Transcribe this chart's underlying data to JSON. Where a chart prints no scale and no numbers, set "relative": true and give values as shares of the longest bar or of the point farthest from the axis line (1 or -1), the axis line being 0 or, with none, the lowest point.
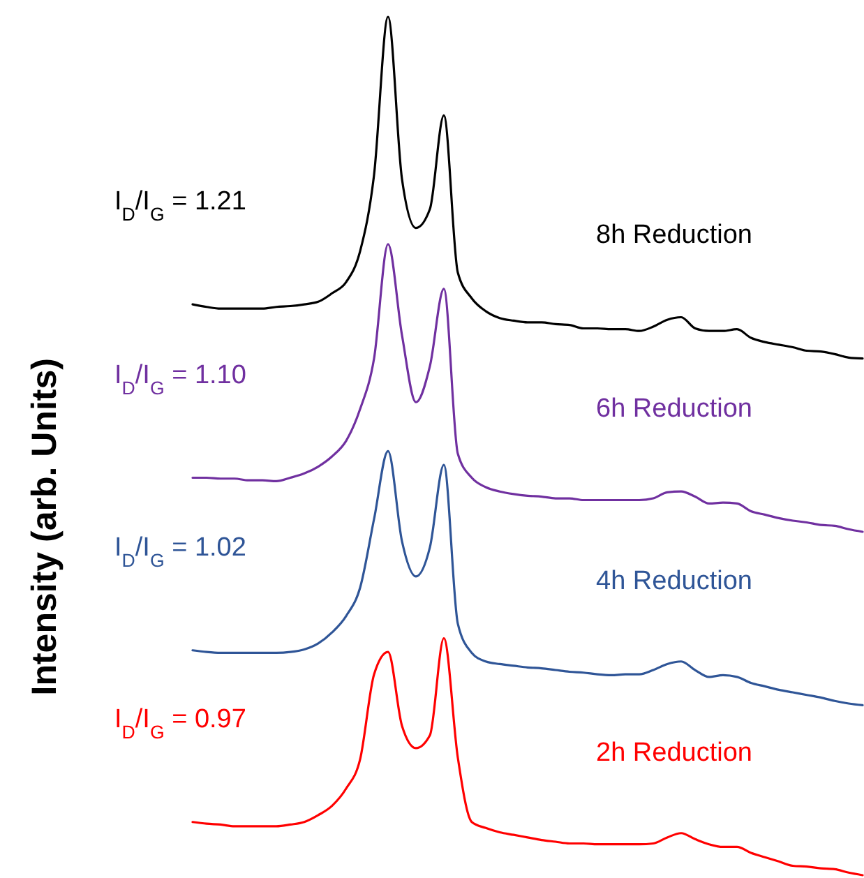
{
  "chart_data": {
    "type": "line",
    "relative": true,
    "ylabel": "Intensity (arb. Units)",
    "categories": [
      null,
      null,
      null,
      null,
      null,
      null,
      null,
      null,
      null,
      null,
      null,
      null,
      null,
      null,
      null,
      null,
      null,
      null,
      null,
      null,
      null,
      null,
      null,
      null,
      null,
      null,
      null,
      null,
      null,
      null,
      null,
      null,
      null,
      null,
      null,
      null,
      null,
      null,
      null,
      null,
      null,
      null,
      null,
      null,
      null,
      null,
      null,
      null,
      null
    ],
    "series": [
      {
        "name": "8h Reduction",
        "color": "#000000",
        "values": [
          0.665,
          0.662,
          0.66,
          0.66,
          0.66,
          0.66,
          0.662,
          0.663,
          0.665,
          0.668,
          0.678,
          0.691,
          0.727,
          0.816,
          1,
          0.811,
          0.754,
          0.776,
          0.885,
          0.702,
          0.672,
          0.657,
          0.649,
          0.646,
          0.644,
          0.644,
          0.642,
          0.641,
          0.637,
          0.637,
          0.636,
          0.636,
          0.634,
          0.639,
          0.647,
          0.65,
          0.637,
          0.634,
          0.634,
          0.636,
          0.626,
          0.621,
          0.618,
          0.615,
          0.611,
          0.61,
          0.607,
          0.603,
          0.602
        ]
      },
      {
        "name": "6h Reduction",
        "color": "#7030a0",
        "values": [
          0.463,
          0.463,
          0.462,
          0.462,
          0.46,
          0.46,
          0.459,
          0.463,
          0.468,
          0.476,
          0.488,
          0.506,
          0.543,
          0.602,
          0.735,
          0.629,
          0.551,
          0.593,
          0.683,
          0.491,
          0.463,
          0.452,
          0.447,
          0.444,
          0.442,
          0.441,
          0.439,
          0.439,
          0.437,
          0.437,
          0.437,
          0.437,
          0.437,
          0.439,
          0.446,
          0.447,
          0.441,
          0.433,
          0.434,
          0.433,
          0.424,
          0.42,
          0.416,
          0.413,
          0.411,
          0.408,
          0.407,
          0.403,
          0.4
        ]
      },
      {
        "name": "4h Reduction",
        "color": "#2f5597",
        "values": [
          0.262,
          0.26,
          0.259,
          0.259,
          0.259,
          0.259,
          0.259,
          0.26,
          0.263,
          0.27,
          0.283,
          0.302,
          0.335,
          0.415,
          0.494,
          0.389,
          0.348,
          0.382,
          0.478,
          0.293,
          0.259,
          0.249,
          0.246,
          0.244,
          0.242,
          0.241,
          0.239,
          0.237,
          0.236,
          0.234,
          0.233,
          0.234,
          0.234,
          0.239,
          0.246,
          0.249,
          0.239,
          0.231,
          0.233,
          0.231,
          0.224,
          0.22,
          0.216,
          0.213,
          0.21,
          0.207,
          0.203,
          0.2,
          0.198
        ]
      },
      {
        "name": "2h Reduction",
        "color": "#ff0000",
        "values": [
          0.062,
          0.06,
          0.059,
          0.057,
          0.057,
          0.057,
          0.057,
          0.059,
          0.062,
          0.07,
          0.081,
          0.101,
          0.135,
          0.234,
          0.26,
          0.174,
          0.148,
          0.163,
          0.276,
          0.137,
          0.062,
          0.055,
          0.05,
          0.047,
          0.044,
          0.041,
          0.039,
          0.037,
          0.037,
          0.036,
          0.036,
          0.036,
          0.036,
          0.037,
          0.044,
          0.049,
          0.042,
          0.036,
          0.033,
          0.033,
          0.026,
          0.021,
          0.016,
          0.011,
          0.01,
          0.008,
          0.007,
          0.003,
          0
        ]
      }
    ],
    "annotations": [
      "I$_{D}$/I$_{G}$ = 1.21",
      "I$_{D}$/I$_{G}$ = 1.10",
      "I$_{D}$/I$_{G}$ = 1.02",
      "I$_{D}$/I$_{G}$ = 0.97"
    ]
  }
}
